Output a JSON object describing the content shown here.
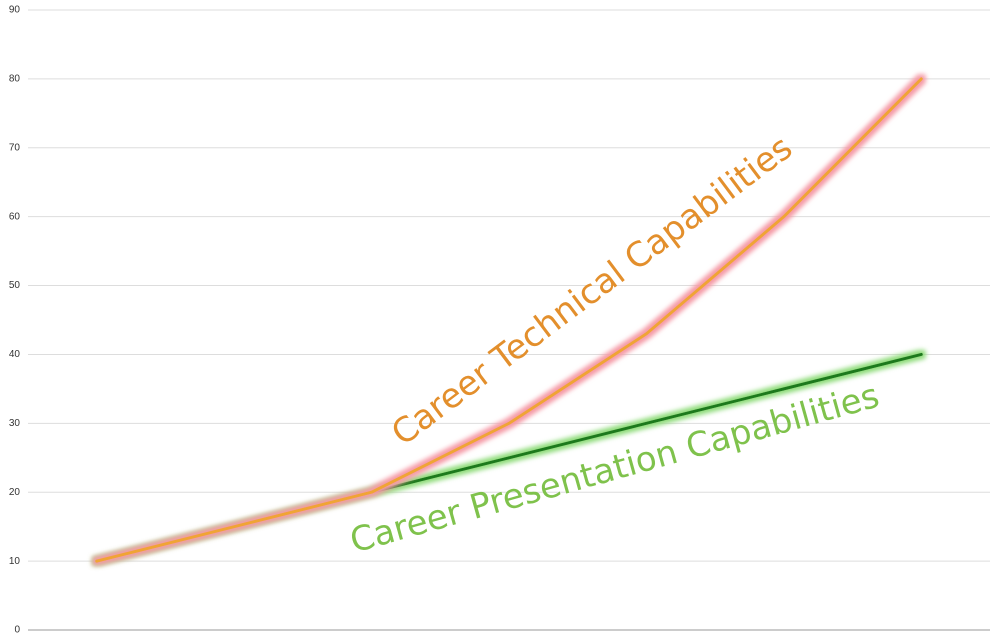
{
  "chart_data": {
    "type": "line",
    "categories": [
      null,
      null,
      null,
      null,
      null,
      null,
      null
    ],
    "series": [
      {
        "name": "Career Presentation Capabilities",
        "color": "#1f7a1f",
        "glow": "#8fdc7a",
        "label_color": "#7fc24c",
        "values": [
          10,
          15,
          20,
          25,
          30,
          35,
          40
        ]
      },
      {
        "name": "Career Technical Capabilities",
        "color": "#f0a436",
        "glow": "#f59aa6",
        "label_color": "#e38f2c",
        "values": [
          10,
          15,
          20,
          30,
          43,
          60,
          80
        ]
      }
    ],
    "ylim": [
      0,
      90
    ],
    "yticks": [
      0,
      10,
      20,
      30,
      40,
      50,
      60,
      70,
      80,
      90
    ],
    "grid": true
  }
}
